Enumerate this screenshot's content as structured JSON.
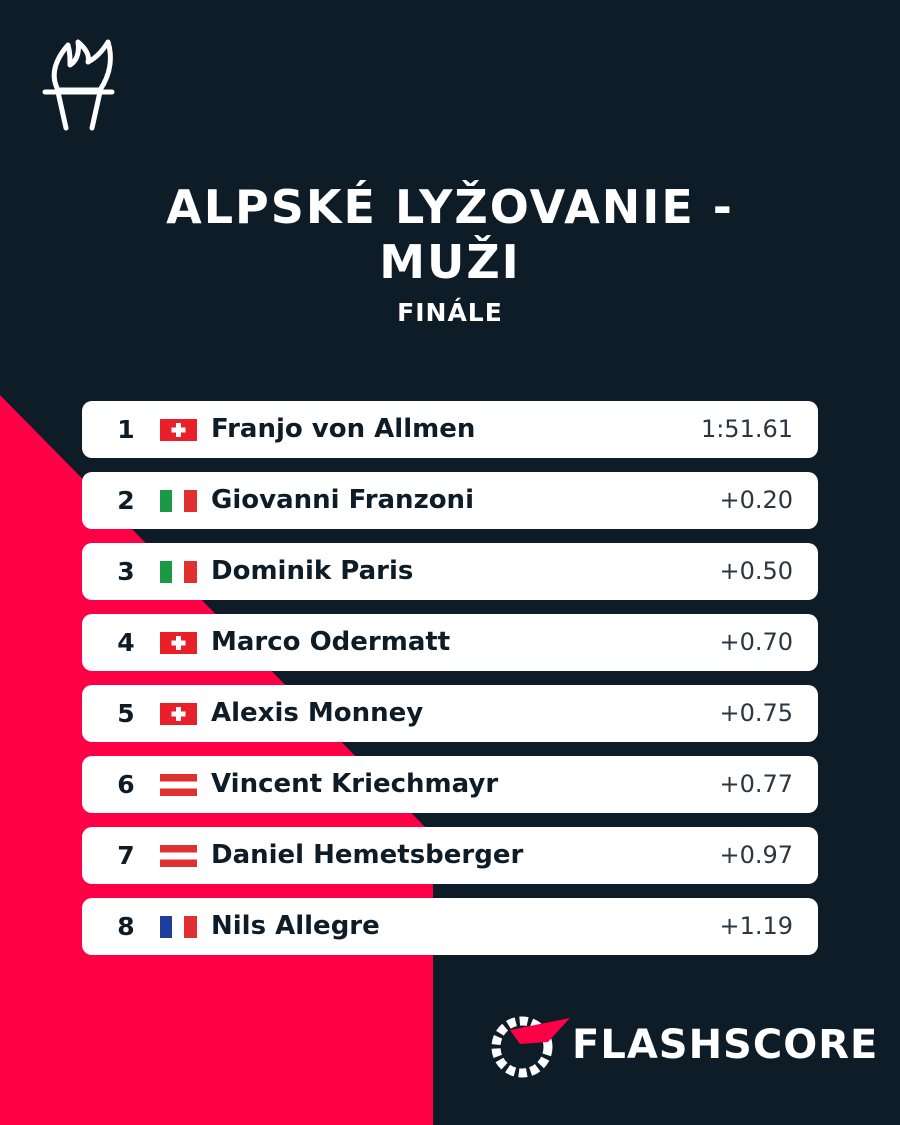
{
  "header": {
    "title": [
      "ALPSKÉ LYŽOVANIE -",
      "MUŽI"
    ],
    "subtitle": "FINÁLE"
  },
  "table": {
    "rows": [
      [
        "1",
        "Franjo von Allmen",
        "1:51.61"
      ],
      [
        "2",
        "Giovanni Franzoni",
        "+0.20"
      ],
      [
        "3",
        "Dominik Paris",
        "+0.50"
      ],
      [
        "4",
        "Marco Odermatt",
        "+0.70"
      ],
      [
        "5",
        "Alexis Monney",
        "+0.75"
      ],
      [
        "6",
        "Vincent Kriechmayr",
        "+0.77"
      ],
      [
        "7",
        "Daniel Hemetsberger",
        "+0.97"
      ],
      [
        "8",
        "Nils Allegre",
        "+1.19"
      ]
    ]
  },
  "footer": {
    "brand": "FLASHSCORE"
  }
}
